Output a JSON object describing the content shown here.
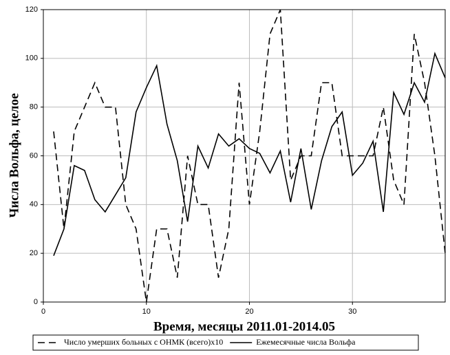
{
  "chart_data": {
    "type": "line",
    "xlabel": "Время, месяцы 2011.01-2014.05",
    "ylabel": "Числа Вольфа, целое",
    "x": [
      1,
      2,
      3,
      4,
      5,
      6,
      7,
      8,
      9,
      10,
      11,
      12,
      13,
      14,
      15,
      16,
      17,
      18,
      19,
      20,
      21,
      22,
      23,
      24,
      25,
      26,
      27,
      28,
      29,
      30,
      31,
      32,
      33,
      34,
      35,
      36,
      37,
      38,
      39
    ],
    "series": [
      {
        "name": "Число умерших больных с ОНМК (всего)x10",
        "color": "#000000",
        "dash": true,
        "values": [
          70,
          30,
          70,
          80,
          90,
          80,
          80,
          40,
          30,
          0,
          30,
          30,
          10,
          60,
          40,
          40,
          10,
          30,
          90,
          40,
          70,
          110,
          120,
          50,
          60,
          60,
          90,
          90,
          60,
          60,
          60,
          60,
          80,
          50,
          40,
          110,
          90,
          60,
          20
        ]
      },
      {
        "name": "Ежемесячные числа Вольфа",
        "color": "#000000",
        "dash": false,
        "values": [
          19,
          30,
          56,
          54,
          42,
          37,
          44,
          51,
          78,
          88,
          97,
          73,
          58,
          33,
          64,
          55,
          69,
          64,
          67,
          63,
          61,
          53,
          62,
          41,
          63,
          38,
          58,
          72,
          78,
          52,
          57,
          66,
          37,
          86,
          77,
          90,
          82,
          102,
          92
        ]
      }
    ],
    "xlim": [
      0,
      39
    ],
    "xticks": [
      0,
      10,
      20,
      30
    ],
    "ylim": [
      0,
      120
    ],
    "yticks": [
      0,
      20,
      40,
      60,
      80,
      100,
      120
    ],
    "grid": true,
    "legend": "bottom"
  }
}
